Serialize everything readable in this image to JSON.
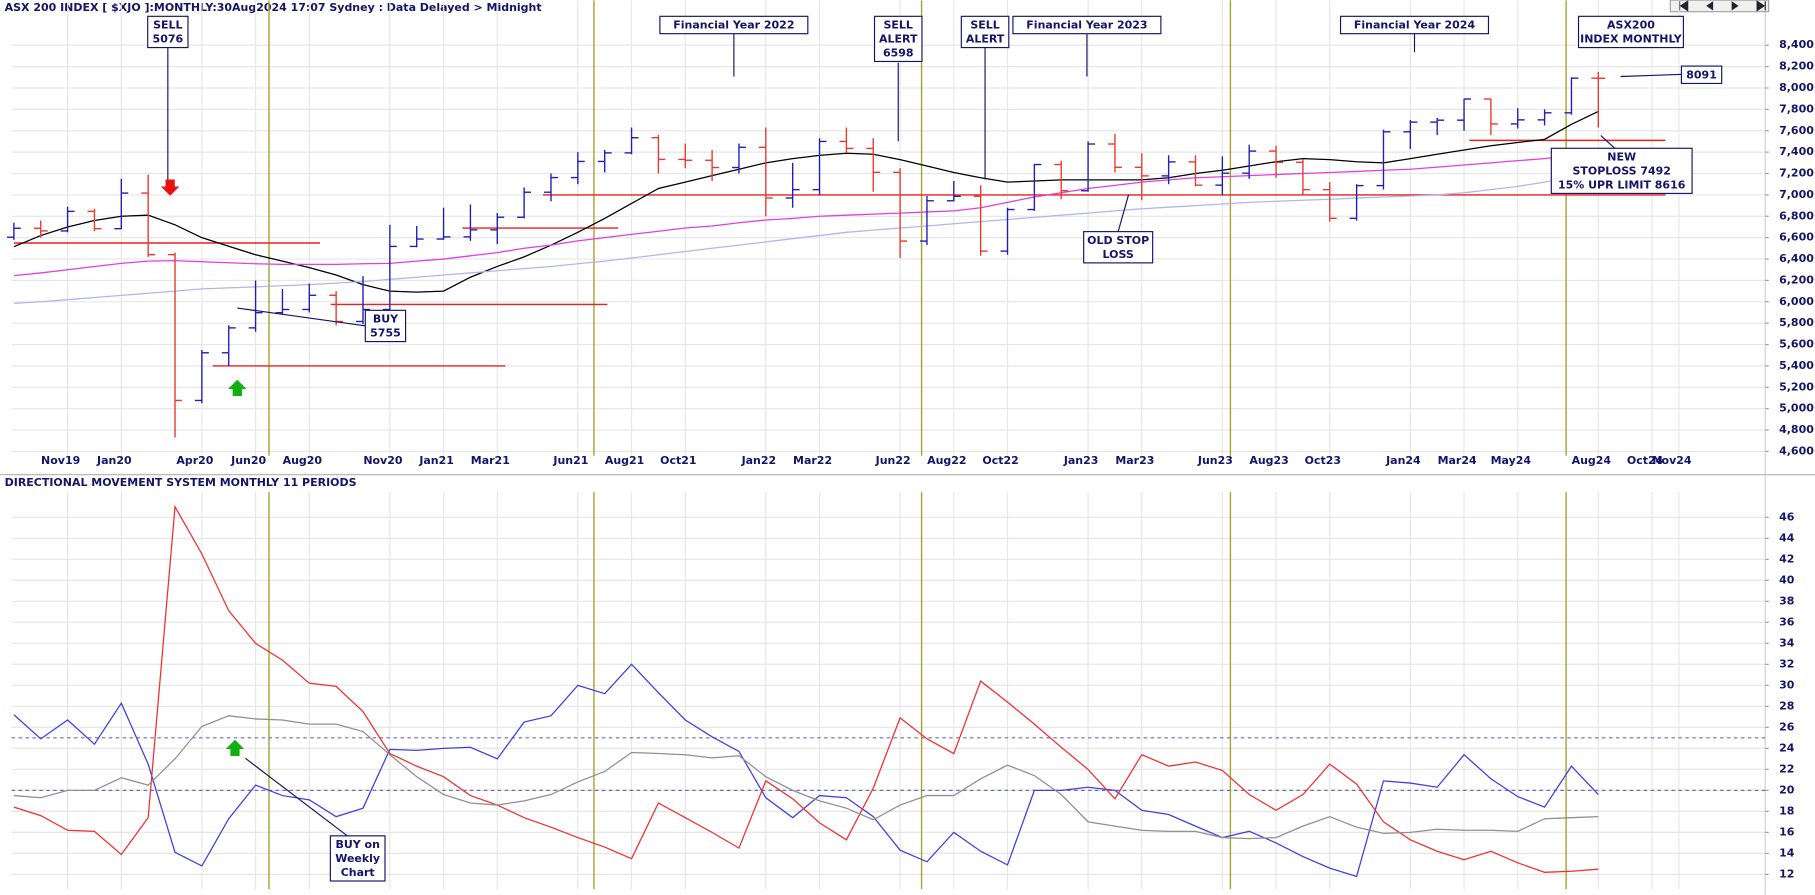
{
  "chart_data": [
    {
      "type": "ohlc",
      "title": "ASX 200 INDEX [ $XJO ]:MONTHLY:30Aug2024 17:07 Sydney : Data Delayed > Midnight",
      "categories": [
        null,
        null,
        "Nov19",
        null,
        "Jan20",
        null,
        null,
        "Apr20",
        null,
        "Jun20",
        null,
        "Aug20",
        null,
        null,
        "Nov20",
        null,
        "Jan21",
        null,
        "Mar21",
        null,
        null,
        "Jun21",
        null,
        "Aug21",
        null,
        "Oct21",
        null,
        null,
        "Jan22",
        null,
        "Mar22",
        null,
        null,
        "Jun22",
        null,
        "Aug22",
        null,
        "Oct22",
        null,
        null,
        "Jan23",
        null,
        "Mar23",
        null,
        null,
        "Jun23",
        null,
        "Aug23",
        null,
        "Oct23",
        null,
        null,
        "Jan24",
        null,
        "Mar24",
        null,
        "May24",
        null,
        null,
        "Aug24",
        null,
        "Oct24",
        "Nov24"
      ],
      "open": [
        6604,
        6688,
        6663,
        6846,
        6684,
        7017,
        6441,
        5077,
        5523,
        5756,
        5898,
        5928,
        6061,
        5816,
        5928,
        6518,
        6587,
        6607,
        6673,
        6791,
        7025,
        7162,
        7313,
        7393,
        7535,
        7332,
        7324,
        7256,
        7445,
        6971,
        7049,
        7500,
        7435,
        7211,
        6568,
        6945,
        6987,
        6474,
        6863,
        7284,
        7039,
        7476,
        7258,
        7178,
        7309,
        7091,
        7203,
        7410,
        7305,
        7049,
        6781,
        7087,
        7590,
        7681,
        7699,
        7897,
        7664,
        7702,
        7768,
        8092,
        null,
        null,
        null
      ],
      "high": [
        6740,
        6760,
        6890,
        6870,
        7150,
        7190,
        6460,
        5550,
        5780,
        6200,
        6120,
        6170,
        6100,
        6240,
        6720,
        6710,
        6880,
        6910,
        6830,
        7070,
        7200,
        7400,
        7420,
        7630,
        7560,
        7480,
        7420,
        7480,
        7630,
        7300,
        7530,
        7630,
        7530,
        7250,
        6990,
        7130,
        7090,
        6880,
        7290,
        7320,
        7500,
        7570,
        7390,
        7370,
        7370,
        7360,
        7470,
        7460,
        7330,
        7120,
        7100,
        7610,
        7700,
        7720,
        7900,
        7900,
        7810,
        7800,
        8100,
        8150,
        null,
        null,
        null
      ],
      "low": [
        6580,
        6600,
        6650,
        6660,
        6680,
        6420,
        4730,
        5050,
        5400,
        5720,
        5880,
        5900,
        5780,
        5790,
        5900,
        6510,
        6580,
        6570,
        6540,
        6780,
        6940,
        7100,
        7210,
        7380,
        7200,
        7250,
        7130,
        7200,
        6800,
        6880,
        7000,
        7390,
        7030,
        6410,
        6530,
        6940,
        6430,
        6440,
        6850,
        6960,
        7030,
        7210,
        6950,
        7100,
        7080,
        7000,
        7150,
        7160,
        7000,
        6750,
        6760,
        7050,
        7430,
        7560,
        7600,
        7560,
        7620,
        7650,
        7750,
        7630,
        null,
        null,
        null
      ],
      "close": [
        6688,
        6663,
        6846,
        6684,
        7017,
        6441,
        5077,
        5523,
        5756,
        5898,
        5928,
        6061,
        5816,
        5928,
        6518,
        6587,
        6607,
        6673,
        6791,
        7025,
        7162,
        7313,
        7393,
        7535,
        7332,
        7324,
        7256,
        7445,
        6971,
        7049,
        7500,
        7435,
        7211,
        6568,
        6945,
        6987,
        6474,
        6863,
        7284,
        7039,
        7476,
        7258,
        7178,
        7309,
        7091,
        7203,
        7410,
        7305,
        7049,
        6781,
        7087,
        7590,
        7681,
        7699,
        7897,
        7664,
        7702,
        7768,
        8092,
        8091,
        null,
        null,
        null
      ],
      "up_color": "#2020b8",
      "down_color": "#e83a30",
      "lines": [
        {
          "color": "#000000",
          "values": [
            6516,
            6620,
            6700,
            6760,
            6800,
            6810,
            6720,
            6600,
            6520,
            6440,
            6380,
            6320,
            6250,
            6160,
            6100,
            6090,
            6100,
            6230,
            6330,
            6420,
            6530,
            6650,
            6780,
            6920,
            7060,
            7120,
            7180,
            7240,
            7300,
            7340,
            7370,
            7390,
            7380,
            7330,
            7270,
            7210,
            7160,
            7120,
            7130,
            7140,
            7140,
            7140,
            7140,
            7160,
            7200,
            7230,
            7270,
            7310,
            7340,
            7330,
            7310,
            7300,
            7340,
            7380,
            7420,
            7460,
            7490,
            7520,
            7660,
            7780,
            null,
            null,
            null
          ]
        },
        {
          "color": "#e040e0",
          "values": [
            6245,
            6270,
            6300,
            6330,
            6360,
            6380,
            6385,
            6375,
            6365,
            6355,
            6350,
            6350,
            6350,
            6355,
            6360,
            6380,
            6400,
            6430,
            6460,
            6500,
            6530,
            6570,
            6600,
            6630,
            6660,
            6690,
            6710,
            6740,
            6765,
            6780,
            6800,
            6810,
            6820,
            6830,
            6840,
            6850,
            6880,
            6930,
            6980,
            7020,
            7060,
            7090,
            7120,
            7140,
            7160,
            7170,
            7180,
            7190,
            7200,
            7210,
            7220,
            7230,
            7240,
            7260,
            7280,
            7300,
            7320,
            7340,
            7370,
            7415,
            null,
            null,
            null
          ]
        },
        {
          "color": "#b4b4f0",
          "values": [
            5985,
            6000,
            6020,
            6040,
            6060,
            6080,
            6100,
            6120,
            6130,
            6140,
            6150,
            6160,
            6175,
            6190,
            6210,
            6230,
            6250,
            6270,
            6290,
            6310,
            6330,
            6355,
            6380,
            6410,
            6440,
            6470,
            6500,
            6530,
            6560,
            6590,
            6620,
            6650,
            6670,
            6690,
            6710,
            6730,
            6750,
            6770,
            6790,
            6810,
            6830,
            6850,
            6870,
            6885,
            6900,
            6915,
            6930,
            6940,
            6950,
            6960,
            6970,
            6980,
            6990,
            7000,
            7020,
            7050,
            7080,
            7120,
            7170,
            7220,
            null,
            null,
            null
          ]
        }
      ],
      "levels": [
        {
          "value": 6550,
          "start": 0,
          "end": 11.4
        },
        {
          "value": 5975,
          "start": 11.8,
          "end": 22.1
        },
        {
          "value": 5400,
          "start": 7.4,
          "end": 18.3
        },
        {
          "value": 6690,
          "start": 16.7,
          "end": 22.5
        },
        {
          "value": 7000,
          "start": 19.7,
          "end": 61.5
        },
        {
          "value": 7510,
          "start": 54.2,
          "end": 61.5
        }
      ],
      "level_color": "#e82020",
      "period_lines": {
        "color": "#a8a030",
        "x": [
          9.5,
          21.6,
          33.8,
          45.3,
          57.8
        ]
      },
      "ylim": [
        4560,
        8820
      ],
      "yticks": [
        {
          "value": 4600,
          "label": "4,600"
        },
        {
          "value": 4800,
          "label": "4,800"
        },
        {
          "value": 5000,
          "label": "5,000"
        },
        {
          "value": 5200,
          "label": "5,200"
        },
        {
          "value": 5400,
          "label": "5,400"
        },
        {
          "value": 5600,
          "label": "5,600"
        },
        {
          "value": 5800,
          "label": "5,800"
        },
        {
          "value": 6000,
          "label": "6,000"
        },
        {
          "value": 6200,
          "label": "6,200"
        },
        {
          "value": 6400,
          "label": "6,400"
        },
        {
          "value": 6600,
          "label": "6,600"
        },
        {
          "value": 6800,
          "label": "6,800"
        },
        {
          "value": 7000,
          "label": "7,000"
        },
        {
          "value": 7200,
          "label": "7,200"
        },
        {
          "value": 7400,
          "label": "7,400"
        },
        {
          "value": 7600,
          "label": "7,600"
        },
        {
          "value": 7800,
          "label": "7,800"
        },
        {
          "value": 8000,
          "label": "8,000"
        },
        {
          "value": 8200,
          "label": "8,200"
        },
        {
          "value": 8400,
          "label": "8,400"
        }
      ],
      "grid": true,
      "annotations": [
        {
          "text": [
            "SELL",
            "5076"
          ]
        },
        {
          "text": [
            "Financial Year 2022"
          ]
        },
        {
          "text": [
            "SELL",
            "ALERT",
            "6598"
          ]
        },
        {
          "text": [
            "SELL",
            "ALERT"
          ]
        },
        {
          "text": [
            "Financial Year 2023"
          ]
        },
        {
          "text": [
            "Financial Year 2024"
          ]
        },
        {
          "text": [
            "ASX200",
            "INDEX MONTHLY"
          ]
        },
        {
          "text": [
            "8091"
          ]
        },
        {
          "text": [
            "BUY",
            "5755"
          ]
        },
        {
          "text": [
            "OLD STOP",
            "LOSS"
          ]
        },
        {
          "text": [
            "NEW",
            "STOPLOSS 7492",
            "15% UPR LIMIT 8616"
          ]
        }
      ]
    },
    {
      "type": "line",
      "title": "DIRECTIONAL MOVEMENT SYSTEM MONTHLY 11 PERIODS",
      "lines": [
        {
          "color": "#4040e0",
          "values": [
            27.2,
            24.9,
            26.7,
            24.4,
            28.3,
            22.5,
            14.1,
            12.8,
            17.3,
            20.5,
            19.5,
            19.1,
            17.5,
            18.3,
            23.9,
            23.8,
            24.0,
            24.1,
            23.0,
            26.5,
            27.1,
            30.0,
            29.2,
            32.0,
            29.3,
            26.7,
            25.1,
            23.7,
            19.3,
            17.4,
            19.5,
            19.3,
            17.5,
            14.3,
            13.2,
            16.0,
            14.2,
            12.9,
            20.0,
            20.0,
            20.3,
            20.0,
            18.1,
            17.7,
            16.6,
            15.5,
            16.1,
            15.0,
            13.7,
            12.6,
            11.8,
            20.9,
            20.7,
            20.3,
            23.4,
            21.1,
            19.4,
            18.4,
            22.3,
            19.6
          ]
        },
        {
          "color": "#f03030",
          "values": [
            18.4,
            17.6,
            16.2,
            16.1,
            13.9,
            17.4,
            47,
            42.5,
            37.1,
            34.0,
            32.4,
            30.2,
            29.9,
            27.5,
            23.5,
            22.3,
            21.3,
            19.5,
            18.6,
            17.4,
            16.5,
            15.5,
            14.6,
            13.5,
            18.8,
            17.4,
            16.0,
            14.5,
            20.9,
            19.2,
            16.9,
            15.3,
            20.2,
            26.9,
            24.9,
            23.5,
            30.4,
            28.4,
            26.3,
            24.1,
            22.0,
            19.2,
            23.4,
            22.3,
            22.7,
            21.9,
            19.6,
            18.1,
            19.6,
            22.5,
            20.6,
            17.0,
            15.3,
            14.2,
            13.4,
            14.2,
            13.1,
            12.2,
            12.3,
            12.5
          ]
        },
        {
          "color": "#909090",
          "values": [
            19.5,
            19.3,
            20,
            20,
            21.2,
            20.5,
            23,
            26.1,
            27.1,
            26.8,
            26.7,
            26.3,
            26.3,
            25.6,
            23.4,
            21.3,
            19.6,
            18.8,
            18.6,
            19,
            19.6,
            20.8,
            21.8,
            23.6,
            23.5,
            23.4,
            23.1,
            23.3,
            21.3,
            20,
            19,
            18.3,
            17.2,
            18.6,
            19.5,
            19.5,
            21.1,
            22.4,
            21.4,
            19.6,
            17,
            16.6,
            16.2,
            16.1,
            16.1,
            15.5,
            15.4,
            15.5,
            16.6,
            17.5,
            16.5,
            15.9,
            16,
            16.3,
            16.2,
            16.2,
            16.1,
            17.3,
            17.4,
            17.5
          ]
        }
      ],
      "refs": [
        25,
        20
      ],
      "ref_color": "#6a6ac8",
      "ylim": [
        10.6,
        48.4
      ],
      "yticks": [
        12,
        14,
        16,
        18,
        20,
        22,
        24,
        26,
        28,
        30,
        32,
        34,
        36,
        38,
        40,
        42,
        44,
        46
      ],
      "grid": true,
      "annotations": [
        {
          "text": [
            "BUY on",
            "Weekly",
            "Chart"
          ]
        }
      ]
    }
  ]
}
